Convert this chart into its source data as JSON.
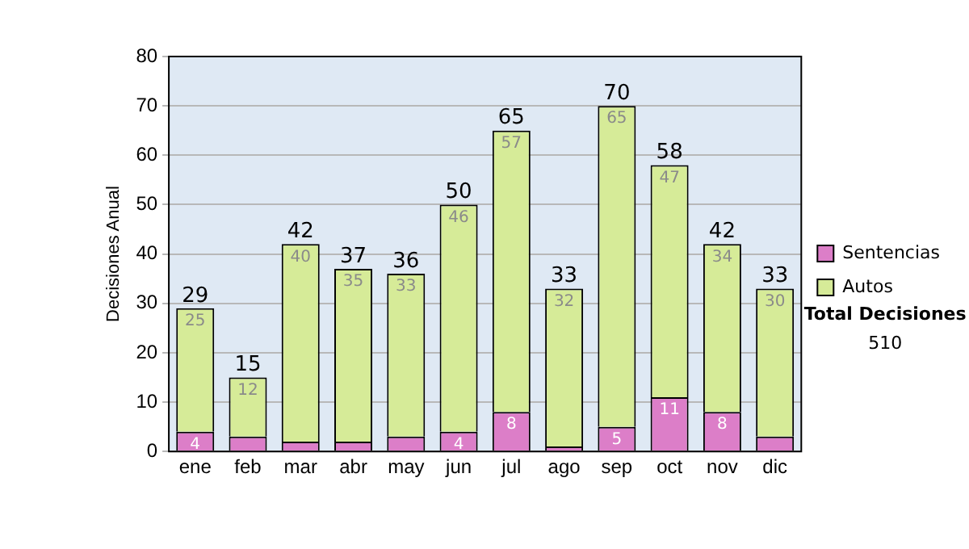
{
  "chart_data": {
    "type": "bar",
    "stacked": true,
    "ylabel": "Decisiones Anual",
    "categories": [
      "ene",
      "feb",
      "mar",
      "abr",
      "may",
      "jun",
      "jul",
      "ago",
      "sep",
      "oct",
      "nov",
      "dic"
    ],
    "series": [
      {
        "name": "Sentencias",
        "color": "#dc7ec8",
        "values": [
          4,
          3,
          2,
          2,
          3,
          4,
          8,
          1,
          5,
          11,
          8,
          3
        ],
        "value_labels": [
          "4",
          null,
          null,
          null,
          null,
          "4",
          "8",
          null,
          "5",
          "11",
          "8",
          null
        ]
      },
      {
        "name": "Autos",
        "color": "#d6eb98",
        "values": [
          25,
          12,
          40,
          35,
          33,
          46,
          57,
          32,
          65,
          47,
          34,
          30
        ],
        "value_labels": [
          "25",
          "12",
          "40",
          "35",
          "33",
          "46",
          "57",
          "32",
          "65",
          "47",
          "34",
          "30"
        ]
      }
    ],
    "totals": [
      "29",
      "15",
      "42",
      "37",
      "36",
      "50",
      "65",
      "33",
      "70",
      "58",
      "42",
      "33"
    ],
    "ylim": [
      0,
      80
    ],
    "yticks": [
      0,
      10,
      20,
      30,
      40,
      50,
      60,
      70,
      80
    ],
    "grid": "y",
    "legend": "right",
    "annotations": [
      "Total Decisiones",
      "510"
    ]
  }
}
